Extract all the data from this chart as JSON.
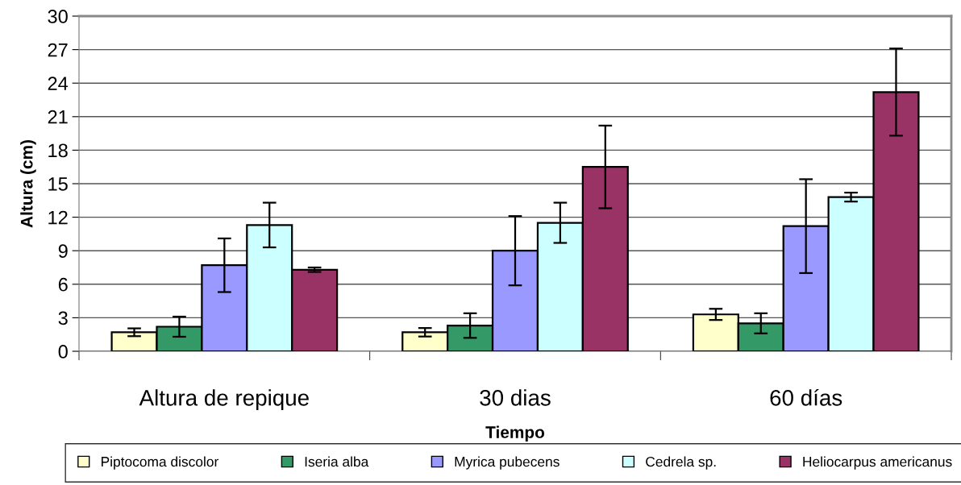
{
  "chart_data": {
    "type": "bar",
    "xlabel": "Tiempo",
    "ylabel": "Altura (cm)",
    "categories": [
      "Altura de repique",
      "30 dias",
      "60 días"
    ],
    "series": [
      {
        "name": "Piptocoma discolor",
        "color": "#ffffcc",
        "values": [
          1.7,
          1.7,
          3.3
        ],
        "errors": [
          0.35,
          0.38,
          0.5
        ]
      },
      {
        "name": "Iseria alba",
        "color": "#339966",
        "values": [
          2.2,
          2.3,
          2.5
        ],
        "errors": [
          0.9,
          1.1,
          0.9
        ]
      },
      {
        "name": "Myrica pubecens",
        "color": "#9999ff",
        "values": [
          7.7,
          9.0,
          11.2
        ],
        "errors": [
          2.4,
          3.1,
          4.2
        ]
      },
      {
        "name": "Cedrela sp.",
        "color": "#ccffff",
        "values": [
          11.3,
          11.5,
          13.8
        ],
        "errors": [
          2.0,
          1.8,
          0.4
        ]
      },
      {
        "name": "Heliocarpus americanus",
        "color": "#993366",
        "values": [
          7.3,
          16.5,
          23.2
        ],
        "errors": [
          0.2,
          3.7,
          3.9
        ]
      }
    ],
    "ylim": [
      0,
      30
    ],
    "yticks": [
      0,
      3,
      6,
      9,
      12,
      15,
      18,
      21,
      24,
      27,
      30
    ],
    "grid": "y",
    "legend": "bottom"
  }
}
